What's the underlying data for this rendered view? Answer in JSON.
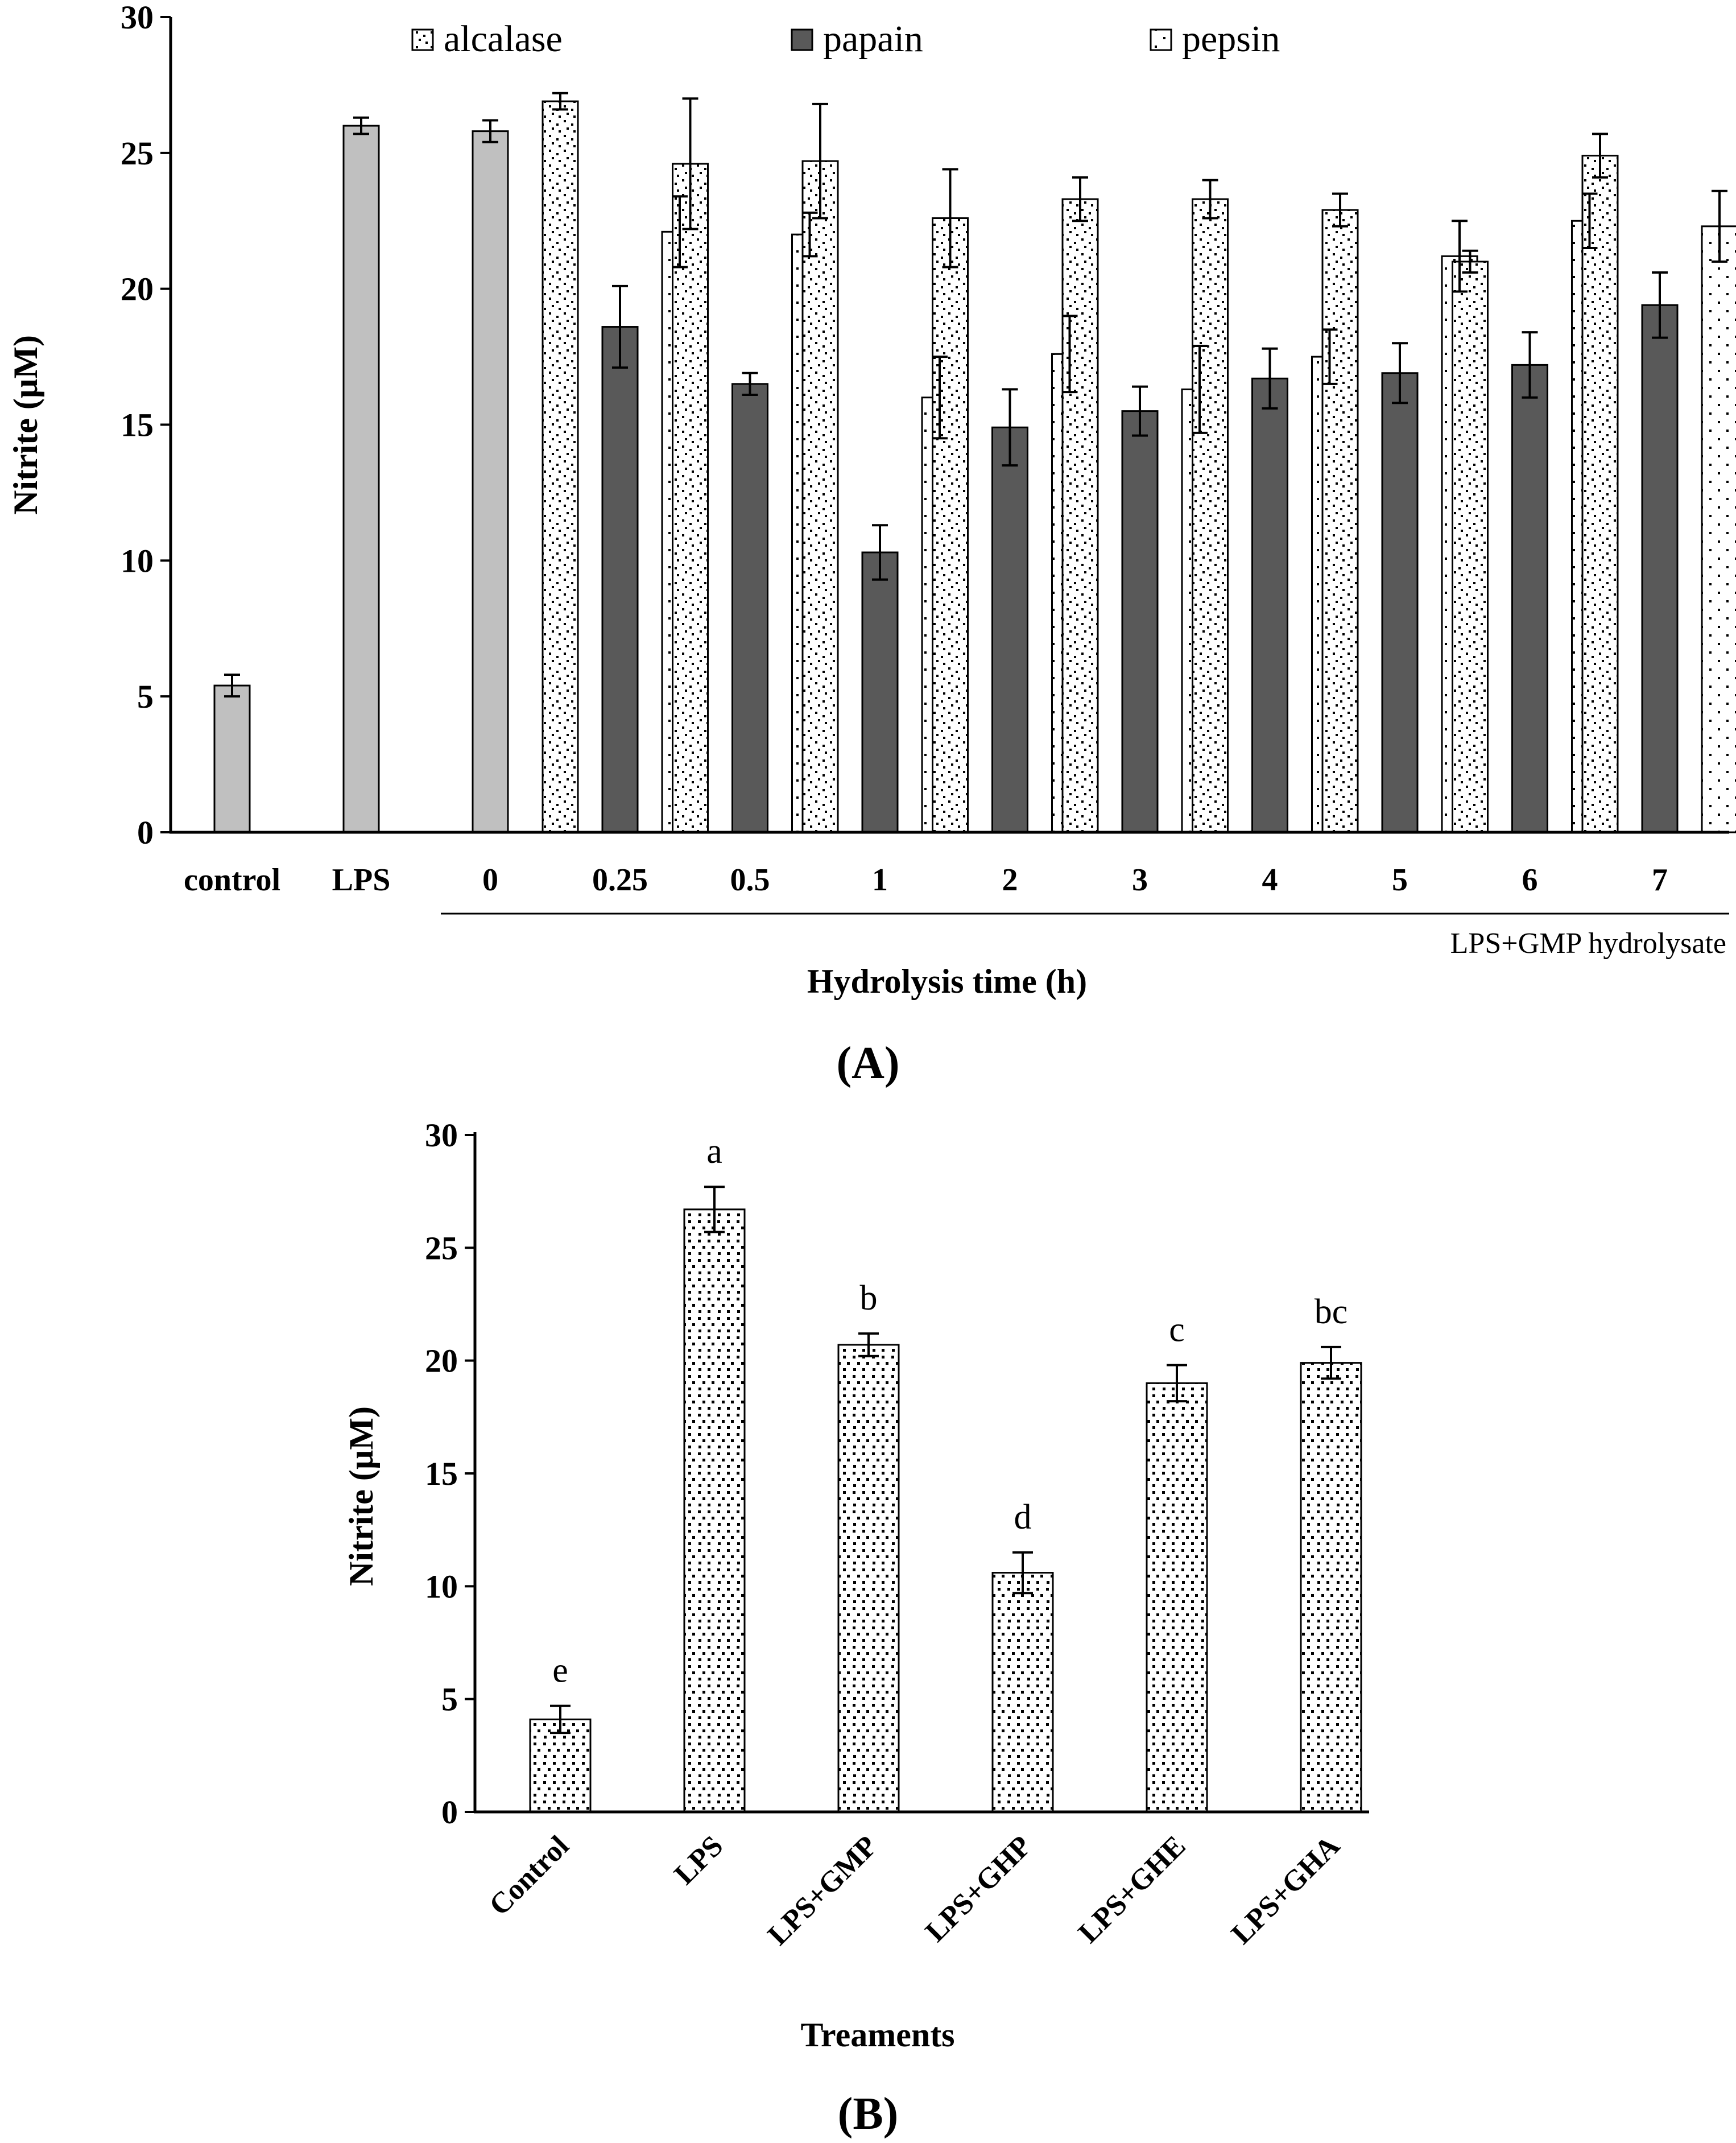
{
  "colors": {
    "baseline_bar": "#c0c0c0",
    "papain_bar": "#595959",
    "pattern_bg": "#ffffff",
    "pattern_dot": "#000000",
    "axis": "#000000"
  },
  "chart_data": [
    {
      "id": "A",
      "type": "bar",
      "panel_label": "A",
      "title": "",
      "xlabel": "Hydrolysis time (h)",
      "ylabel": "Nitrite (µM)",
      "ylim": [
        0,
        30
      ],
      "yticks": [
        0,
        5,
        10,
        15,
        20,
        25,
        30
      ],
      "grid": false,
      "legend_position": "top",
      "group_note": "LPS+GMP hydrolysate",
      "baseline": {
        "categories": [
          "control",
          "LPS",
          "0"
        ],
        "values": [
          5.4,
          26.0,
          25.8
        ],
        "errors": [
          0.4,
          0.3,
          0.4
        ]
      },
      "categories": [
        "0.25",
        "0.5",
        "1",
        "2",
        "3",
        "4",
        "5",
        "6",
        "7"
      ],
      "series": [
        {
          "name": "alcalase",
          "pattern": "alcalase",
          "values": [
            26.9,
            24.6,
            24.7,
            22.6,
            23.3,
            23.3,
            22.9,
            21.0,
            24.9
          ],
          "errors": [
            0.3,
            2.4,
            2.1,
            1.8,
            0.8,
            0.7,
            0.6,
            0.4,
            0.8
          ]
        },
        {
          "name": "papain",
          "pattern": "solid",
          "values": [
            18.6,
            16.5,
            10.3,
            14.9,
            15.5,
            16.7,
            16.9,
            17.2,
            19.4
          ],
          "errors": [
            1.5,
            0.4,
            1.0,
            1.4,
            0.9,
            1.1,
            1.1,
            1.2,
            1.2
          ]
        },
        {
          "name": "pepsin",
          "pattern": "pepsin",
          "values": [
            22.1,
            22.0,
            16.0,
            17.6,
            16.3,
            17.5,
            21.2,
            22.5,
            22.3
          ],
          "errors": [
            1.3,
            0.8,
            1.5,
            1.4,
            1.6,
            1.0,
            1.3,
            1.0,
            1.3
          ]
        }
      ]
    },
    {
      "id": "B",
      "type": "bar",
      "panel_label": "B",
      "title": "",
      "xlabel": "Treaments",
      "ylabel": "Nitrite (µM)",
      "ylim": [
        0,
        30
      ],
      "yticks": [
        0,
        5,
        10,
        15,
        20,
        25,
        30
      ],
      "grid": false,
      "categories": [
        "Control",
        "LPS",
        "LPS+GMP",
        "LPS+GHP",
        "LPS+GHE",
        "LPS+GHA"
      ],
      "values": [
        4.1,
        26.7,
        20.7,
        10.6,
        19.0,
        19.9
      ],
      "errors": [
        0.6,
        1.0,
        0.5,
        0.9,
        0.8,
        0.7
      ],
      "significance_letters": [
        "e",
        "a",
        "b",
        "d",
        "c",
        "bc"
      ]
    }
  ]
}
